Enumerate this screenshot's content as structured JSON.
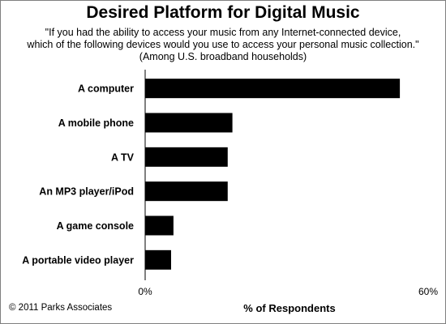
{
  "chart_data": {
    "type": "bar",
    "orientation": "horizontal",
    "title": "Desired Platform for Digital Music",
    "subtitle_lines": [
      "\"If you had the ability to access your music from any Internet-connected device,",
      "which of the following devices would you use to access your personal music collection.\"",
      "(Among U.S. broadband households)"
    ],
    "categories": [
      "A computer",
      "A mobile phone",
      "A TV",
      "An MP3 player/iPod",
      "A game console",
      "A portable video player"
    ],
    "values": [
      54,
      18.5,
      17.5,
      17.5,
      6,
      5.5
    ],
    "xlabel": "% of Respondents",
    "xlim": [
      0,
      60
    ],
    "x_ticks": [
      "0%",
      "60%"
    ],
    "bar_color": "#000000",
    "grid": false,
    "legend": "none"
  },
  "footer": {
    "credit": "© 2011 Parks Associates"
  }
}
